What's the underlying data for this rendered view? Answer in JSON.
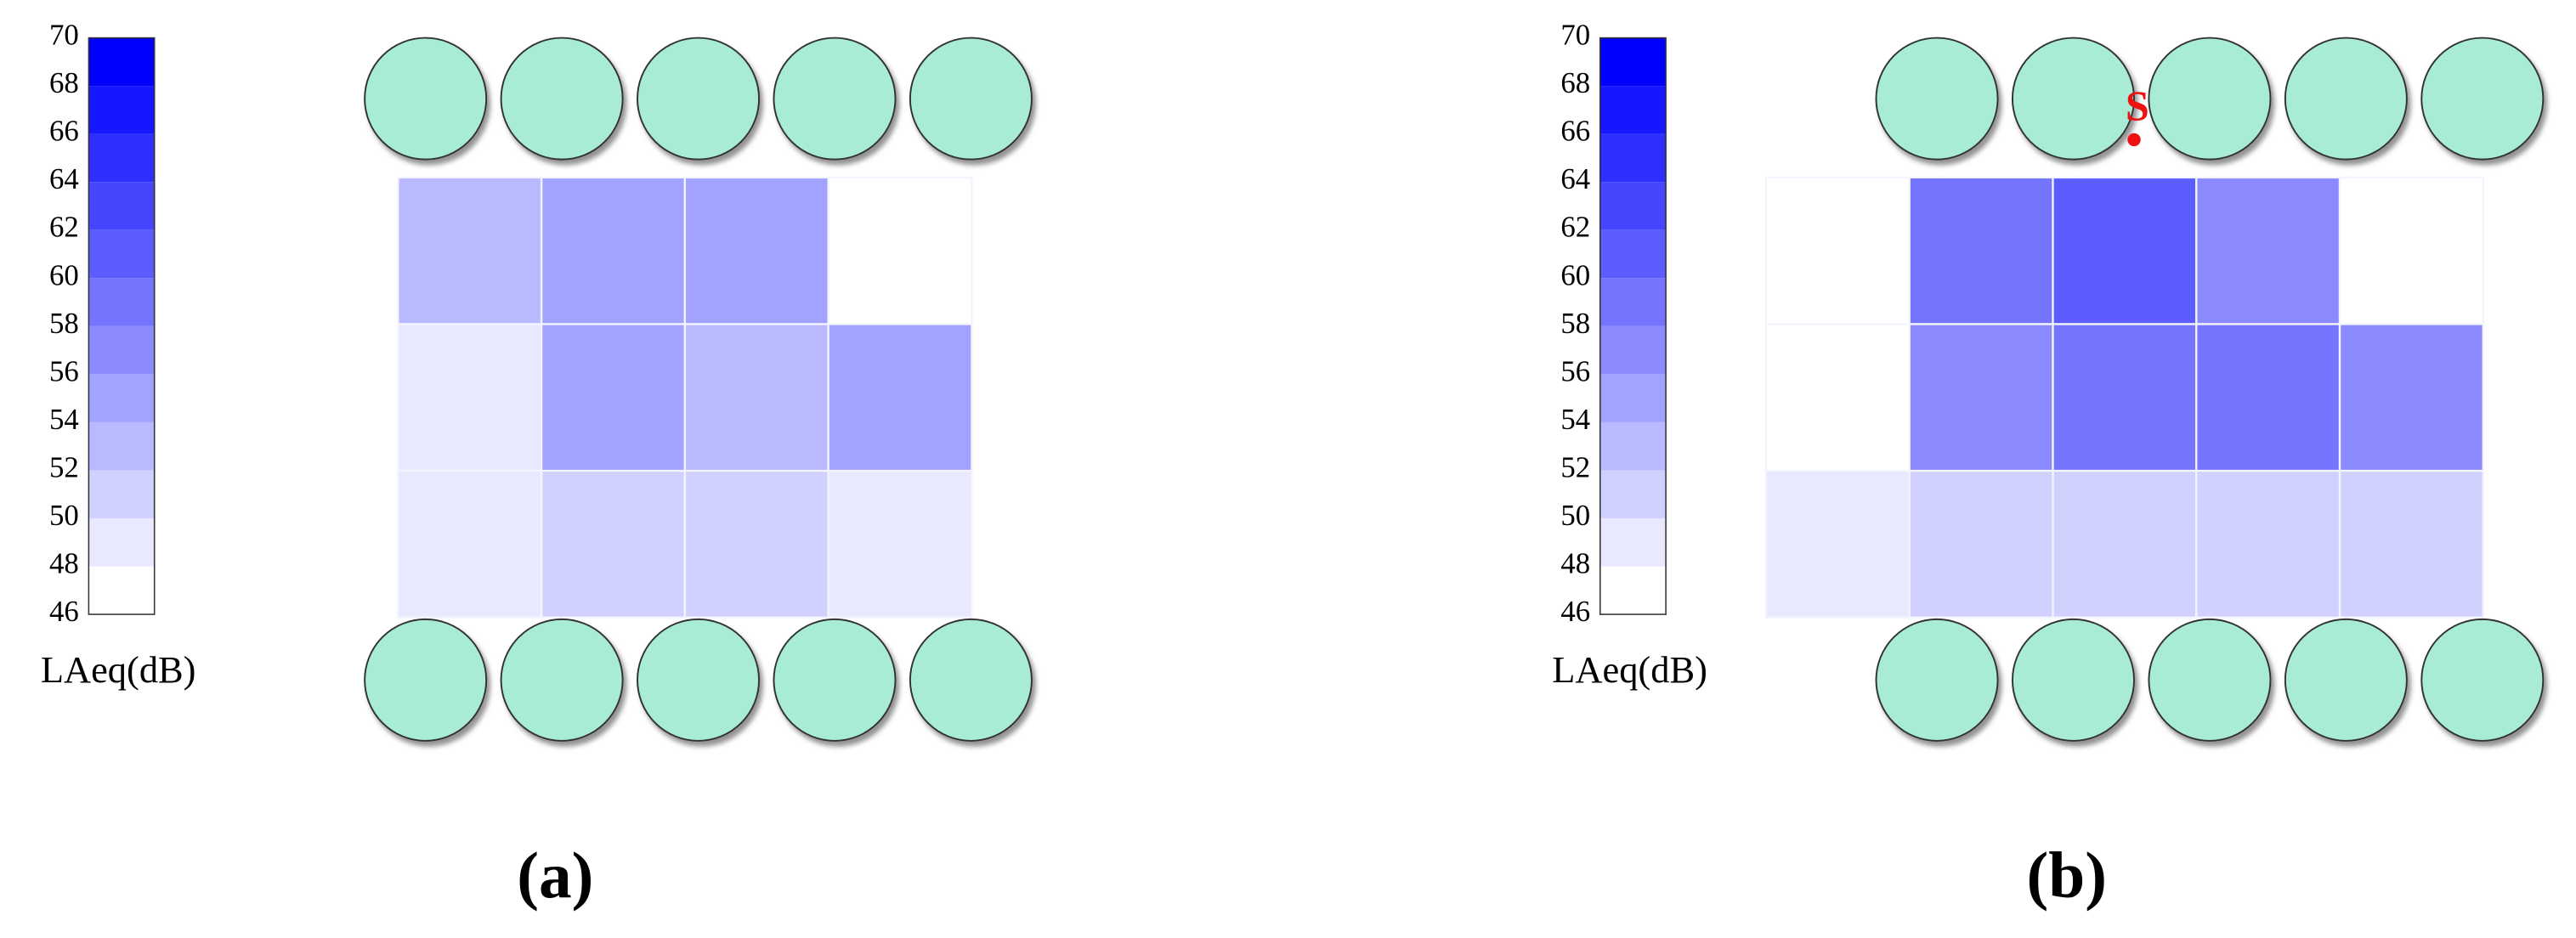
{
  "chart_data": [
    {
      "type": "heatmap",
      "caption": "(a)",
      "colorbar_label": "LAeq(dB)",
      "clim": [
        46,
        70
      ],
      "cticks": [
        46,
        48,
        50,
        52,
        54,
        56,
        58,
        60,
        62,
        64,
        66,
        68,
        70
      ],
      "color": "#0000ff",
      "values": [
        [
          null,
          53,
          55,
          55,
          47
        ],
        [
          null,
          49,
          55,
          53,
          55
        ],
        [
          null,
          49,
          51,
          51,
          49
        ]
      ]
    },
    {
      "type": "heatmap",
      "caption": "(b)",
      "colorbar_label": "LAeq(dB)",
      "clim": [
        46,
        70
      ],
      "cticks": [
        46,
        48,
        50,
        52,
        54,
        56,
        58,
        60,
        62,
        64,
        66,
        68,
        70
      ],
      "color": "#0000ff",
      "values": [
        [
          47,
          59,
          61,
          57,
          47
        ],
        [
          47,
          57,
          59,
          59,
          57
        ],
        [
          49,
          51,
          51,
          51,
          51
        ]
      ],
      "source_label": "S"
    }
  ]
}
